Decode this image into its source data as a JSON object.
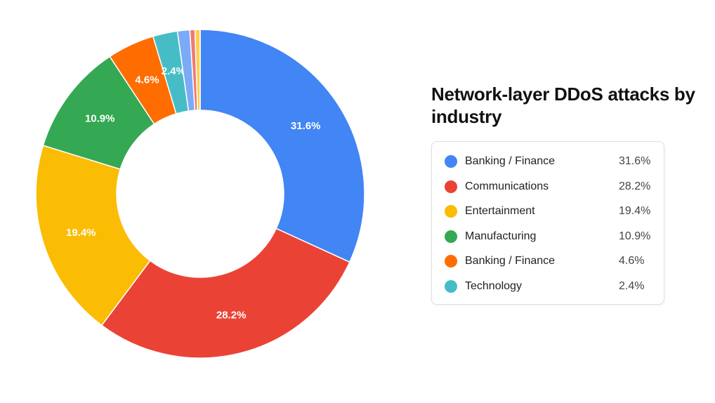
{
  "chart_data": {
    "type": "pie",
    "donut": true,
    "title": "Network-layer DDoS attacks by industry",
    "slices": [
      {
        "label": "Banking / Finance",
        "value": 31.6,
        "color": "#4285f4",
        "display": "31.6%"
      },
      {
        "label": "Communications",
        "value": 28.2,
        "color": "#ea4335",
        "display": "28.2%"
      },
      {
        "label": "Entertainment",
        "value": 19.4,
        "color": "#fbbc04",
        "display": "19.4%"
      },
      {
        "label": "Manufacturing",
        "value": 10.9,
        "color": "#34a853",
        "display": "10.9%"
      },
      {
        "label": "Banking / Finance",
        "value": 4.6,
        "color": "#ff6d01",
        "display": "4.6%"
      },
      {
        "label": "Technology",
        "value": 2.4,
        "color": "#46bdc6",
        "display": "2.4%"
      },
      {
        "label": "",
        "value": 1.2,
        "color": "#7baaf7",
        "display": ""
      },
      {
        "label": "",
        "value": 0.5,
        "color": "#f07b72",
        "display": ""
      },
      {
        "label": "",
        "value": 0.5,
        "color": "#fcd04f",
        "display": ""
      }
    ],
    "legend_placement": "right"
  },
  "legend": {
    "items": [
      {
        "label": "Banking / Finance",
        "value": "31.6%",
        "color": "#4285f4"
      },
      {
        "label": "Communications",
        "value": "28.2%",
        "color": "#ea4335"
      },
      {
        "label": "Entertainment",
        "value": "19.4%",
        "color": "#fbbc04"
      },
      {
        "label": "Manufacturing",
        "value": "10.9%",
        "color": "#34a853"
      },
      {
        "label": "Banking / Finance",
        "value": "4.6%",
        "color": "#ff6d01"
      },
      {
        "label": "Technology",
        "value": "2.4%",
        "color": "#46bdc6"
      }
    ]
  }
}
